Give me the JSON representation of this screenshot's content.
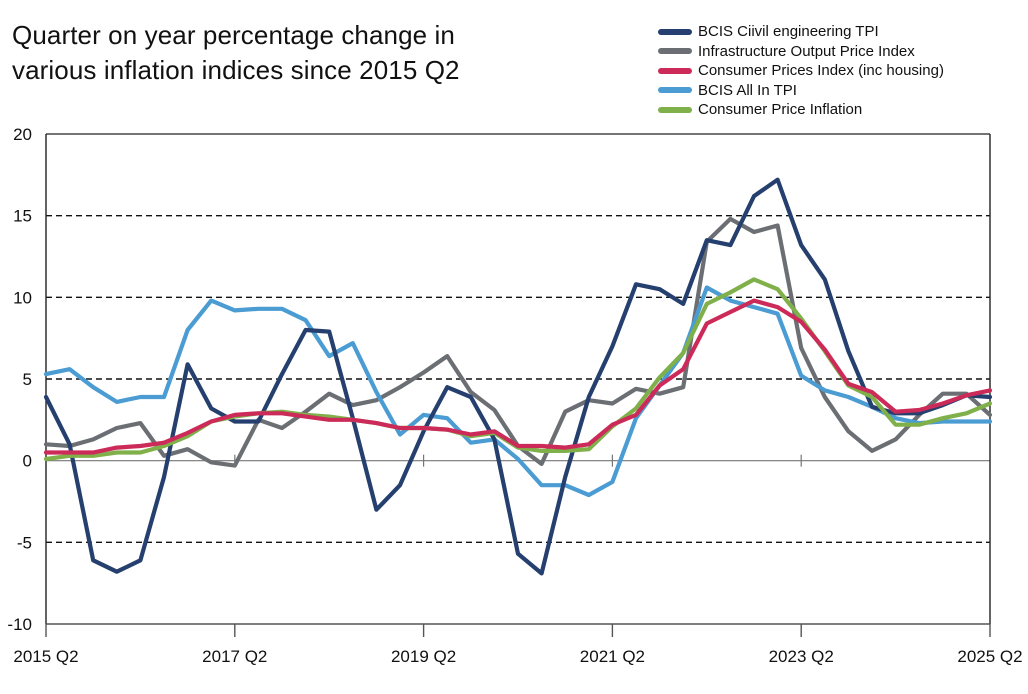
{
  "chart_data": {
    "type": "line",
    "title_lines": [
      "Quarter on year percentage change in",
      "various inflation indices since 2015 Q2"
    ],
    "title": "Quarter on year percentage change in various inflation indices since 2015 Q2",
    "xlabel": "",
    "ylabel": "",
    "ylim": [
      -10,
      20
    ],
    "yticks": [
      20,
      15,
      10,
      5,
      0,
      -5,
      -10
    ],
    "dashed_gridlines": [
      15,
      10,
      5,
      -5
    ],
    "x_tick_labels": [
      "2015 Q2",
      "2017 Q2",
      "2019 Q2",
      "2021 Q2",
      "2023 Q2",
      "2025 Q2"
    ],
    "x_tick_quarter_index": [
      0,
      8,
      16,
      24,
      32,
      40
    ],
    "legend_position": "top-right",
    "x": [
      "2015 Q2",
      "2015 Q3",
      "2015 Q4",
      "2016 Q1",
      "2016 Q2",
      "2016 Q3",
      "2016 Q4",
      "2017 Q1",
      "2017 Q2",
      "2017 Q3",
      "2017 Q4",
      "2018 Q1",
      "2018 Q2",
      "2018 Q3",
      "2018 Q4",
      "2019 Q1",
      "2019 Q2",
      "2019 Q3",
      "2019 Q4",
      "2020 Q1",
      "2020 Q2",
      "2020 Q3",
      "2020 Q4",
      "2021 Q1",
      "2021 Q2",
      "2021 Q3",
      "2021 Q4",
      "2022 Q1",
      "2022 Q2",
      "2022 Q3",
      "2022 Q4",
      "2023 Q1",
      "2023 Q2",
      "2023 Q3",
      "2023 Q4",
      "2024 Q1",
      "2024 Q2",
      "2024 Q3",
      "2024 Q4",
      "2025 Q1",
      "2025 Q2"
    ],
    "series": [
      {
        "name": "BCIS Ciivil engineering TPI",
        "color": "#253f6e",
        "values": [
          3.9,
          1.0,
          -6.1,
          -6.8,
          -6.1,
          -1.0,
          5.9,
          3.2,
          2.4,
          2.4,
          5.3,
          8.0,
          7.9,
          2.6,
          -3.0,
          -1.5,
          1.8,
          4.5,
          3.9,
          1.3,
          -5.7,
          -6.9,
          -1.0,
          3.9,
          7.0,
          10.8,
          10.5,
          9.6,
          13.5,
          13.2,
          16.2,
          17.2,
          13.2,
          11.1,
          6.7,
          3.3,
          2.9,
          2.9,
          3.4,
          4.0,
          3.9
        ]
      },
      {
        "name": "Infrastructure Output Price Index",
        "color": "#6b6f73",
        "values": [
          1.0,
          0.9,
          1.3,
          2.0,
          2.3,
          0.3,
          0.7,
          -0.1,
          -0.3,
          2.5,
          2.0,
          3.0,
          4.1,
          3.4,
          3.7,
          4.5,
          5.4,
          6.4,
          4.2,
          3.1,
          0.9,
          -0.2,
          3.0,
          3.7,
          3.5,
          4.4,
          4.1,
          4.5,
          13.4,
          14.8,
          14.0,
          14.4,
          6.9,
          3.9,
          1.8,
          0.6,
          1.3,
          2.8,
          4.1,
          4.1,
          2.8
        ]
      },
      {
        "name": "Consumer Prices Index (inc housing)",
        "color": "#cc2b59",
        "values": [
          0.5,
          0.5,
          0.5,
          0.8,
          0.9,
          1.1,
          1.7,
          2.4,
          2.8,
          2.9,
          2.9,
          2.7,
          2.5,
          2.5,
          2.3,
          2.0,
          2.0,
          1.9,
          1.6,
          1.8,
          0.9,
          0.9,
          0.8,
          1.0,
          2.2,
          2.8,
          4.6,
          5.6,
          8.4,
          9.1,
          9.8,
          9.4,
          8.5,
          6.8,
          4.7,
          4.2,
          3.0,
          3.1,
          3.5,
          4.0,
          4.3
        ]
      },
      {
        "name": "BCIS All In TPI",
        "color": "#4a9cd2",
        "values": [
          5.3,
          5.6,
          4.5,
          3.6,
          3.9,
          3.9,
          8.0,
          9.8,
          9.2,
          9.3,
          9.3,
          8.6,
          6.4,
          7.2,
          4.2,
          1.6,
          2.8,
          2.6,
          1.1,
          1.3,
          0.1,
          -1.5,
          -1.5,
          -2.1,
          -1.3,
          2.6,
          4.6,
          6.6,
          10.6,
          9.8,
          9.4,
          9.0,
          5.2,
          4.3,
          3.9,
          3.3,
          2.6,
          2.3,
          2.4,
          2.4,
          2.4
        ]
      },
      {
        "name": "Consumer Price Inflation",
        "color": "#7fb04a",
        "values": [
          0.1,
          0.3,
          0.3,
          0.5,
          0.5,
          0.9,
          1.5,
          2.4,
          2.7,
          2.9,
          3.0,
          2.8,
          2.7,
          2.5,
          2.3,
          2.0,
          2.0,
          1.9,
          1.5,
          1.7,
          0.8,
          0.6,
          0.6,
          0.7,
          2.1,
          3.2,
          5.1,
          6.6,
          9.6,
          10.3,
          11.1,
          10.5,
          8.7,
          6.7,
          4.6,
          3.9,
          2.2,
          2.2,
          2.6,
          2.9,
          3.5
        ]
      }
    ]
  }
}
